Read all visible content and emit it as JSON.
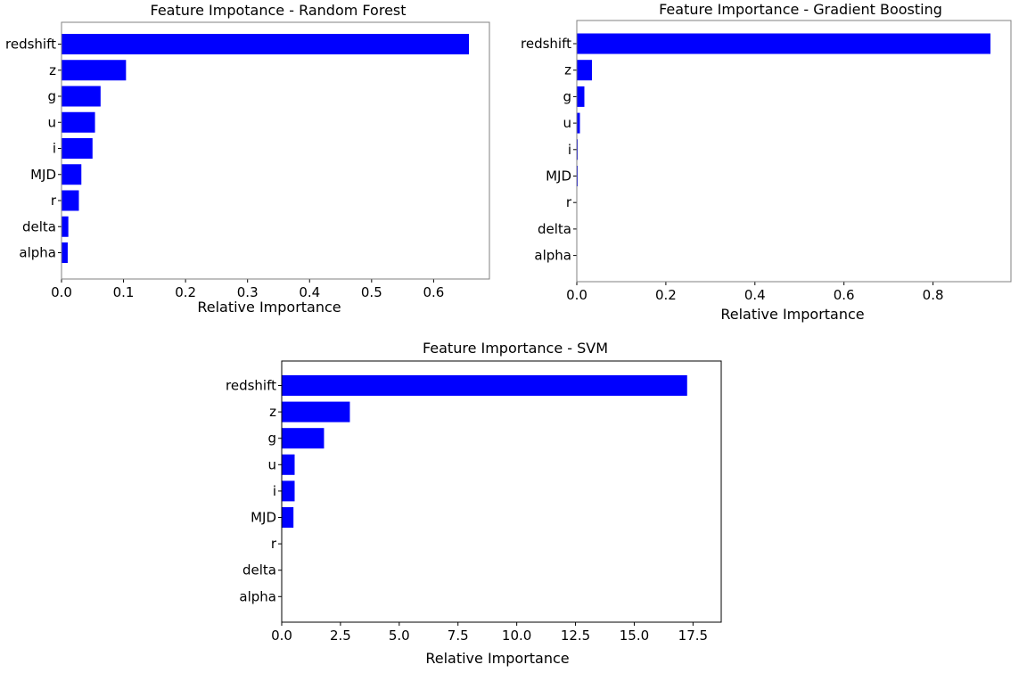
{
  "chart_data": [
    {
      "type": "bar",
      "orientation": "horizontal",
      "title": "Feature Impotance - Random Forest",
      "xlabel": "Relative Importance",
      "categories": [
        "redshift",
        "z",
        "g",
        "u",
        "i",
        "MJD",
        "r",
        "delta",
        "alpha"
      ],
      "values": [
        0.657,
        0.104,
        0.063,
        0.054,
        0.05,
        0.032,
        0.028,
        0.011,
        0.01
      ],
      "xlim": [
        0,
        0.69
      ],
      "xticks": [
        "0.0",
        "0.1",
        "0.2",
        "0.3",
        "0.4",
        "0.5",
        "0.6"
      ],
      "color": "#0000ff"
    },
    {
      "type": "bar",
      "orientation": "horizontal",
      "title": "Feature Importance - Gradient Boosting",
      "xlabel": "Relative Importance",
      "categories": [
        "redshift",
        "z",
        "g",
        "u",
        "i",
        "MJD",
        "r",
        "delta",
        "alpha"
      ],
      "values": [
        0.929,
        0.034,
        0.017,
        0.007,
        0.002,
        0.002,
        0.0,
        0.0,
        0.0
      ],
      "xlim": [
        0,
        0.975
      ],
      "xticks": [
        "0.0",
        "0.2",
        "0.4",
        "0.6",
        "0.8"
      ],
      "color": "#0000ff"
    },
    {
      "type": "bar",
      "orientation": "horizontal",
      "title": "Feature Importance - SVM",
      "xlabel": "Relative Importance",
      "categories": [
        "redshift",
        "z",
        "g",
        "u",
        "i",
        "MJD",
        "r",
        "delta",
        "alpha"
      ],
      "values": [
        17.25,
        2.9,
        1.8,
        0.55,
        0.55,
        0.5,
        0.0,
        0.0,
        0.0
      ],
      "xlim": [
        0,
        18.7
      ],
      "xticks": [
        "0.0",
        "2.5",
        "5.0",
        "7.5",
        "10.0",
        "12.5",
        "15.0",
        "17.5"
      ],
      "color": "#0000ff"
    }
  ]
}
